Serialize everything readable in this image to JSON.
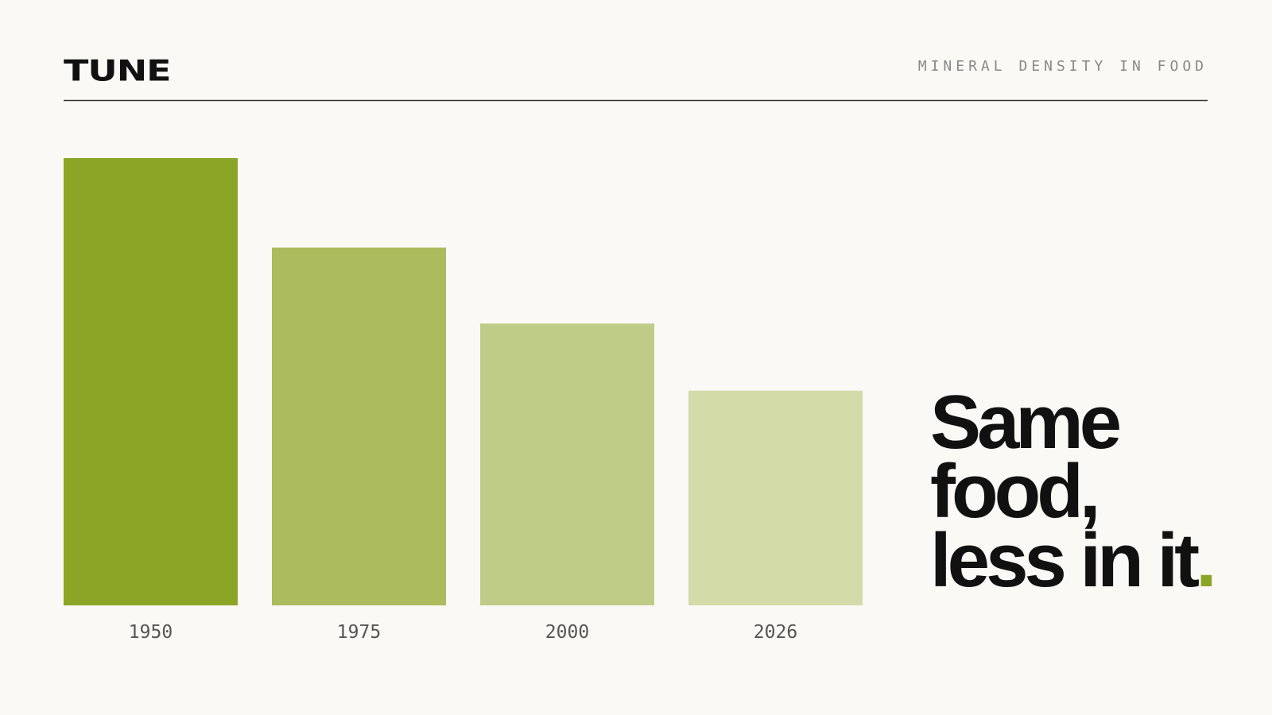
{
  "brand": "TUNE",
  "headline": [
    "Same",
    "food,",
    "less in it"
  ],
  "headline_accent": ".",
  "chart_data": {
    "type": "bar",
    "title": "MINERAL DENSITY IN FOOD",
    "categories": [
      "1950",
      "1975",
      "2000",
      "2026"
    ],
    "values": [
      100,
      80,
      63,
      48
    ],
    "colors": [
      "#8ca526",
      "#abbb5d",
      "#bfcc87",
      "#d3dba8"
    ],
    "ylim": [
      0,
      100
    ]
  }
}
